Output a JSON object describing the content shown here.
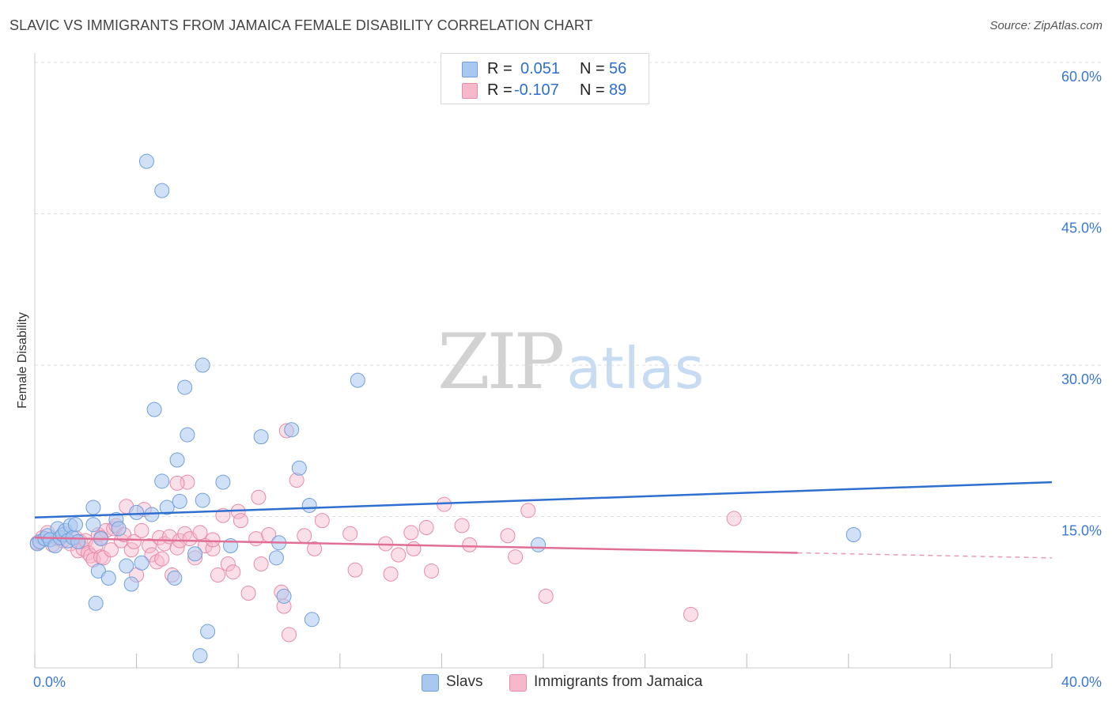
{
  "title": "SLAVIC VS IMMIGRANTS FROM JAMAICA FEMALE DISABILITY CORRELATION CHART",
  "source": "Source: ZipAtlas.com",
  "watermark": {
    "zip": "ZIP",
    "atlas": "atlas"
  },
  "legend": {
    "slavs": {
      "r_label": "R =",
      "r_value": "0.051",
      "n_label": "N =",
      "n_value": "56"
    },
    "jamaica": {
      "r_label": "R =",
      "r_value": "-0.107",
      "n_label": "N =",
      "n_value": "89"
    }
  },
  "bottom_legend": {
    "slavs": "Slavs",
    "jamaica": "Immigrants from Jamaica"
  },
  "colors": {
    "slavs_fill": "#a9c8f0",
    "slavs_stroke": "#6f9fdc",
    "slavs_line": "#2f6fcf",
    "jamaica_fill": "#f6b8cb",
    "jamaica_stroke": "#e88aa8",
    "jamaica_line": "#e06f98",
    "tick_text": "#3b78d4",
    "grid": "#dddddd"
  },
  "chart_data": {
    "type": "scatter",
    "xlabel": "",
    "ylabel": "Female Disability",
    "xlim": [
      0,
      40
    ],
    "ylim": [
      0,
      60
    ],
    "x_tick_labels": [
      "0.0%",
      "40.0%"
    ],
    "y_ticks": [
      15,
      30,
      45,
      60
    ],
    "y_tick_labels": [
      "15.0%",
      "30.0%",
      "45.0%",
      "60.0%"
    ],
    "series": [
      {
        "name": "Slavs",
        "r": 0.051,
        "n": 56,
        "trend": {
          "x": [
            0,
            40
          ],
          "y": [
            14.9,
            18.4
          ]
        },
        "points": [
          [
            0.1,
            12.3
          ],
          [
            0.2,
            12.5
          ],
          [
            0.4,
            12.8
          ],
          [
            0.5,
            13.1
          ],
          [
            0.6,
            12.7
          ],
          [
            0.8,
            12.1
          ],
          [
            0.9,
            13.8
          ],
          [
            1.0,
            12.9
          ],
          [
            1.1,
            13.2
          ],
          [
            1.2,
            13.6
          ],
          [
            1.3,
            12.6
          ],
          [
            1.4,
            14.1
          ],
          [
            1.5,
            12.9
          ],
          [
            1.6,
            14.2
          ],
          [
            1.7,
            12.5
          ],
          [
            2.3,
            14.2
          ],
          [
            2.3,
            15.9
          ],
          [
            2.4,
            6.4
          ],
          [
            2.5,
            9.6
          ],
          [
            2.6,
            12.8
          ],
          [
            2.9,
            8.9
          ],
          [
            3.2,
            14.7
          ],
          [
            3.3,
            13.8
          ],
          [
            3.6,
            10.1
          ],
          [
            3.8,
            8.3
          ],
          [
            4.0,
            15.4
          ],
          [
            4.2,
            10.4
          ],
          [
            4.4,
            50.2
          ],
          [
            4.6,
            15.2
          ],
          [
            4.7,
            25.6
          ],
          [
            5.0,
            47.3
          ],
          [
            5.0,
            18.5
          ],
          [
            5.2,
            15.9
          ],
          [
            5.5,
            8.9
          ],
          [
            5.6,
            20.6
          ],
          [
            5.7,
            16.5
          ],
          [
            5.9,
            27.8
          ],
          [
            6.0,
            23.1
          ],
          [
            6.3,
            11.3
          ],
          [
            6.6,
            30.0
          ],
          [
            6.6,
            16.6
          ],
          [
            6.8,
            3.6
          ],
          [
            6.5,
            1.2
          ],
          [
            7.4,
            18.4
          ],
          [
            7.7,
            12.1
          ],
          [
            8.9,
            22.9
          ],
          [
            9.5,
            10.9
          ],
          [
            9.6,
            12.4
          ],
          [
            9.8,
            7.1
          ],
          [
            10.1,
            23.6
          ],
          [
            10.4,
            19.8
          ],
          [
            10.8,
            16.1
          ],
          [
            10.9,
            4.8
          ],
          [
            12.7,
            28.5
          ],
          [
            19.8,
            12.2
          ],
          [
            32.2,
            13.2
          ]
        ]
      },
      {
        "name": "Immigrants from Jamaica",
        "r": -0.107,
        "n": 89,
        "trend": {
          "x": [
            0,
            30.0
          ],
          "y": [
            12.9,
            11.4
          ]
        },
        "trend_dashed": {
          "x": [
            30.0,
            40
          ],
          "y": [
            11.4,
            10.9
          ]
        },
        "points": [
          [
            0.1,
            12.4
          ],
          [
            0.3,
            12.9
          ],
          [
            0.5,
            13.4
          ],
          [
            0.7,
            12.2
          ],
          [
            0.9,
            12.8
          ],
          [
            1.1,
            12.6
          ],
          [
            1.2,
            13.3
          ],
          [
            1.4,
            12.3
          ],
          [
            1.6,
            12.9
          ],
          [
            1.7,
            11.6
          ],
          [
            1.8,
            12.5
          ],
          [
            1.9,
            11.8
          ],
          [
            2.0,
            12.6
          ],
          [
            2.1,
            11.4
          ],
          [
            2.2,
            11.1
          ],
          [
            2.3,
            10.7
          ],
          [
            2.4,
            12.1
          ],
          [
            2.5,
            13.2
          ],
          [
            2.6,
            11.0
          ],
          [
            2.7,
            10.9
          ],
          [
            2.8,
            13.6
          ],
          [
            3.0,
            11.7
          ],
          [
            3.1,
            13.8
          ],
          [
            3.2,
            14.1
          ],
          [
            3.4,
            12.6
          ],
          [
            3.5,
            13.2
          ],
          [
            3.6,
            16.0
          ],
          [
            3.8,
            11.7
          ],
          [
            3.9,
            12.5
          ],
          [
            4.0,
            9.2
          ],
          [
            4.2,
            13.6
          ],
          [
            4.3,
            15.7
          ],
          [
            4.5,
            12.1
          ],
          [
            4.6,
            11.2
          ],
          [
            4.8,
            10.5
          ],
          [
            4.9,
            12.9
          ],
          [
            5.0,
            10.8
          ],
          [
            5.1,
            12.3
          ],
          [
            5.3,
            13.0
          ],
          [
            5.4,
            9.2
          ],
          [
            5.6,
            11.9
          ],
          [
            5.7,
            12.6
          ],
          [
            5.9,
            13.3
          ],
          [
            6.0,
            18.4
          ],
          [
            6.1,
            12.8
          ],
          [
            6.3,
            10.9
          ],
          [
            6.5,
            13.4
          ],
          [
            6.7,
            12.1
          ],
          [
            7.0,
            11.8
          ],
          [
            7.2,
            9.2
          ],
          [
            7.4,
            15.1
          ],
          [
            7.6,
            10.3
          ],
          [
            7.8,
            9.5
          ],
          [
            8.0,
            15.5
          ],
          [
            8.1,
            14.6
          ],
          [
            8.4,
            7.4
          ],
          [
            8.8,
            16.9
          ],
          [
            8.9,
            10.3
          ],
          [
            9.2,
            13.2
          ],
          [
            9.7,
            7.5
          ],
          [
            9.8,
            6.1
          ],
          [
            10.0,
            3.3
          ],
          [
            9.9,
            23.5
          ],
          [
            10.3,
            18.6
          ],
          [
            10.6,
            13.1
          ],
          [
            11.0,
            11.8
          ],
          [
            11.3,
            14.6
          ],
          [
            12.4,
            13.3
          ],
          [
            12.6,
            9.7
          ],
          [
            13.8,
            12.3
          ],
          [
            14.0,
            9.3
          ],
          [
            14.3,
            11.2
          ],
          [
            14.8,
            13.4
          ],
          [
            14.9,
            11.8
          ],
          [
            15.4,
            13.9
          ],
          [
            15.6,
            9.6
          ],
          [
            16.1,
            16.2
          ],
          [
            16.8,
            14.1
          ],
          [
            17.1,
            12.2
          ],
          [
            18.6,
            13.1
          ],
          [
            18.9,
            11.0
          ],
          [
            19.4,
            15.6
          ],
          [
            20.1,
            7.1
          ],
          [
            25.8,
            5.3
          ],
          [
            27.5,
            14.8
          ],
          [
            5.6,
            18.3
          ],
          [
            7.0,
            12.7
          ],
          [
            8.7,
            12.8
          ],
          [
            2.6,
            12.9
          ]
        ]
      }
    ]
  }
}
